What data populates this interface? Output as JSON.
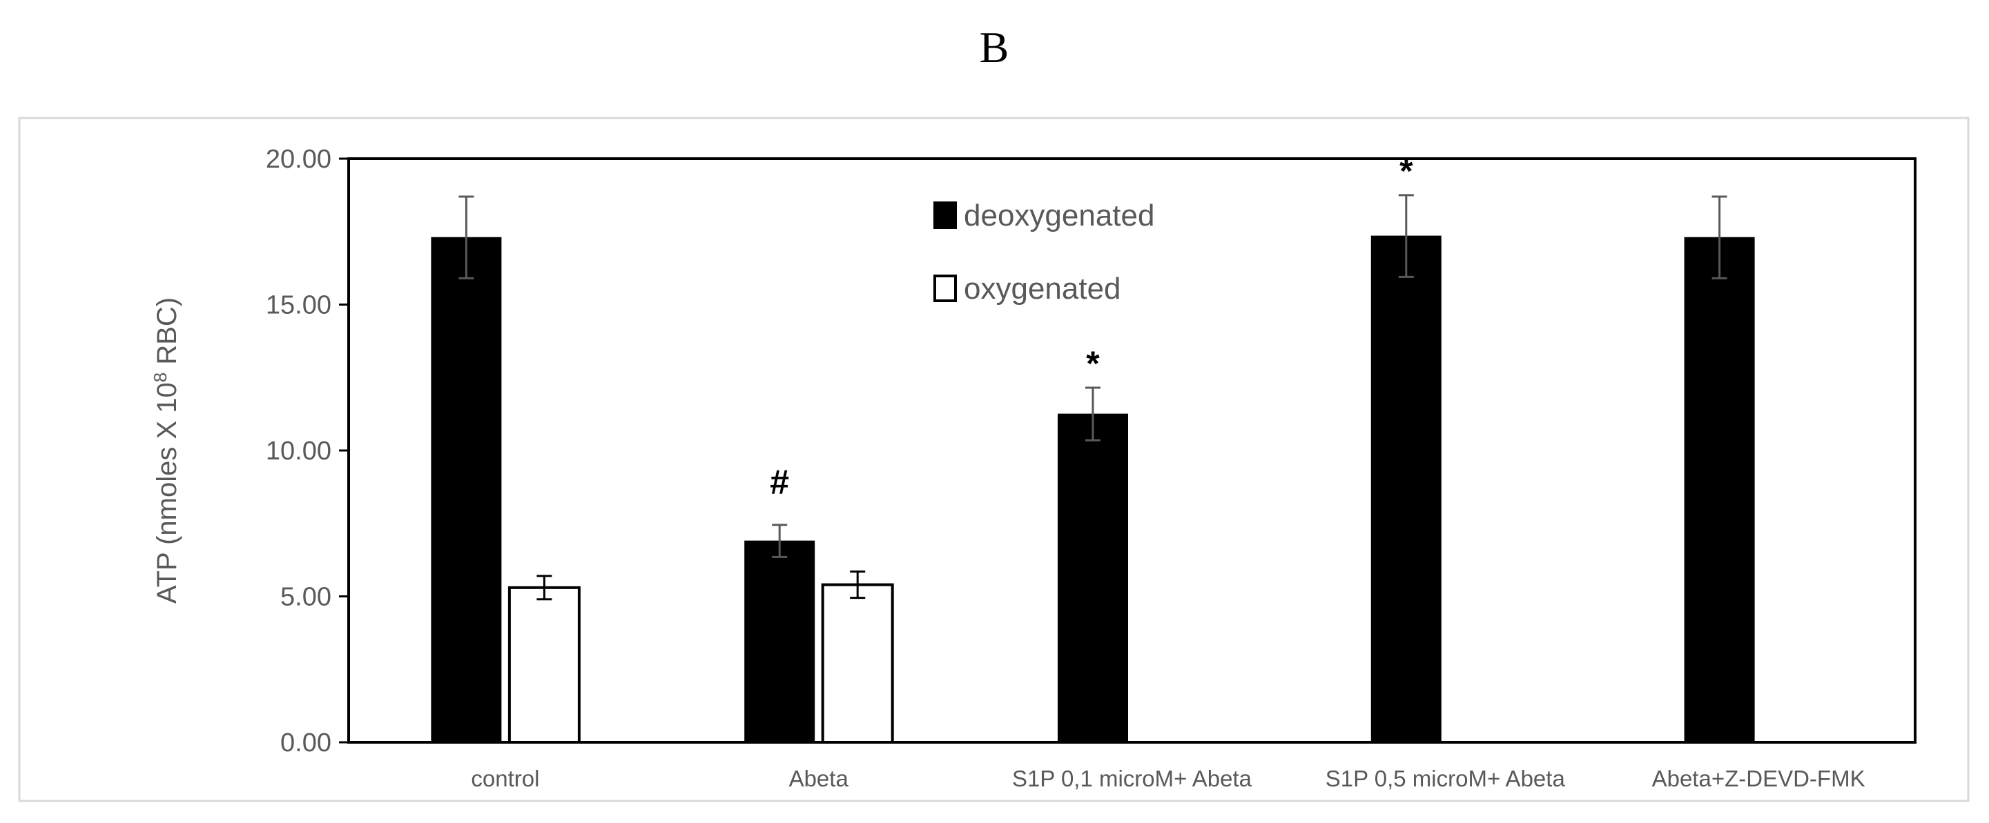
{
  "chart_data": {
    "type": "bar",
    "panel_label": "B",
    "title": "",
    "xlabel": "",
    "ylabel": "ATP (nmoles X 10",
    "ylabel_sup": "8",
    "ylabel_tail": " RBC)",
    "ylim": [
      0,
      20
    ],
    "yticks": [
      "0.00",
      "5.00",
      "10.00",
      "15.00",
      "20.00"
    ],
    "ytick_values": [
      0,
      5,
      10,
      15,
      20
    ],
    "grid": false,
    "legend_position": "top-center",
    "categories": [
      "control",
      "Abeta",
      "S1P 0,1 microM+ Abeta",
      "S1P 0,5 microM+ Abeta",
      "Abeta+Z-DEVD-FMK"
    ],
    "series": [
      {
        "name": "deoxygenated",
        "color": "#000000",
        "values": [
          17.3,
          6.9,
          11.25,
          17.35,
          17.3
        ],
        "errors": [
          1.4,
          0.55,
          0.9,
          1.4,
          1.4
        ]
      },
      {
        "name": "oxygenated",
        "color": "#ffffff",
        "values": [
          5.3,
          5.4,
          null,
          null,
          null
        ],
        "errors": [
          0.4,
          0.45,
          null,
          null,
          null
        ]
      }
    ],
    "annotations": [
      {
        "category": "Abeta",
        "series": "deoxygenated",
        "text": "#"
      },
      {
        "category": "S1P 0,1 microM+ Abeta",
        "series": "deoxygenated",
        "text": "*"
      },
      {
        "category": "S1P 0,5 microM+ Abeta",
        "series": "deoxygenated",
        "text": "*"
      }
    ]
  }
}
